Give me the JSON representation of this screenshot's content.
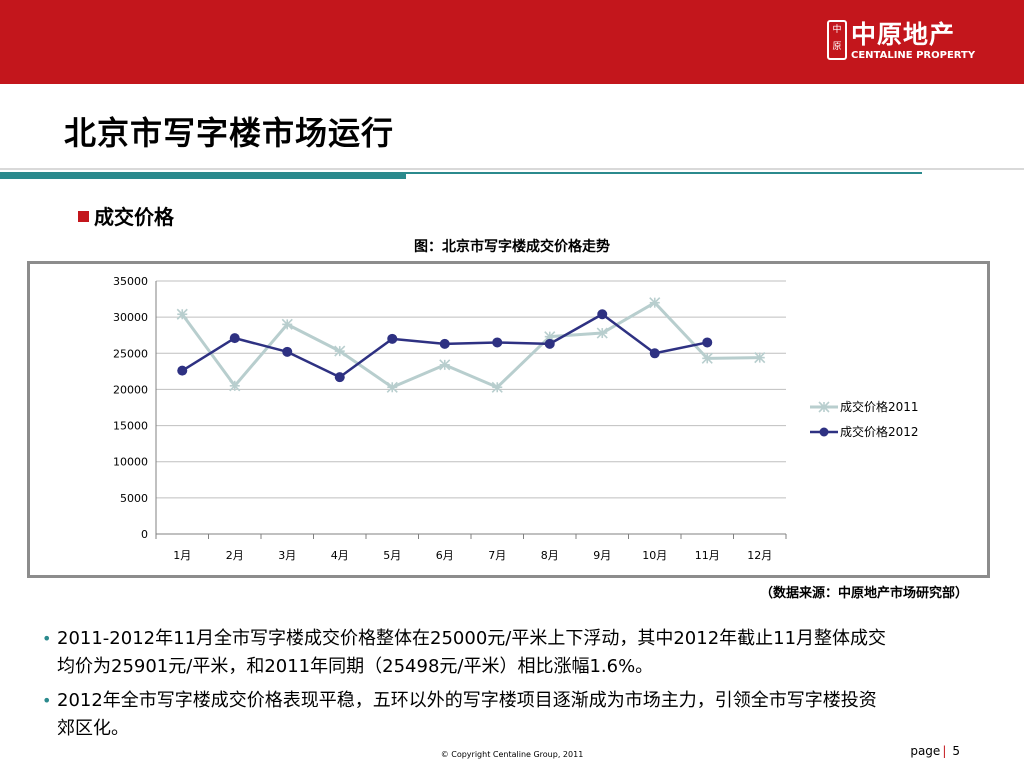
{
  "header": {
    "logo_mark": "中原",
    "logo_cn": "中原地产",
    "logo_en": "CENTALINE PROPERTY"
  },
  "page_title": "北京市写字楼市场运行",
  "section_heading": "成交价格",
  "colors": {
    "brand_red": "#c3161c",
    "teal": "#2b8a8d",
    "series_2011": "#b8cece",
    "series_2012": "#2e3182"
  },
  "chart_data": {
    "type": "line",
    "title": "图：北京市写字楼成交价格走势",
    "categories": [
      "1月",
      "2月",
      "3月",
      "4月",
      "5月",
      "6月",
      "7月",
      "8月",
      "9月",
      "10月",
      "11月",
      "12月"
    ],
    "ylim": [
      0,
      35000
    ],
    "yticks": [
      "0",
      "5000",
      "10000",
      "15000",
      "20000",
      "25000",
      "30000",
      "35000"
    ],
    "grid": true,
    "legend_position": "right",
    "series": [
      {
        "name": "成交价格2011",
        "marker": "star",
        "color": "#b8cece",
        "values": [
          30400,
          20500,
          29000,
          25300,
          20300,
          23400,
          20300,
          27300,
          27800,
          32000,
          24300,
          24400
        ]
      },
      {
        "name": "成交价格2012",
        "marker": "circle",
        "color": "#2e3182",
        "values": [
          22600,
          27100,
          25200,
          21700,
          27000,
          26300,
          26500,
          26300,
          30400,
          25000,
          26500,
          null
        ]
      }
    ]
  },
  "source_note": "（数据来源：中原地产市场研究部）",
  "bullets": [
    {
      "line1": "2011-2012年11月全市写字楼成交价格整体在25000元/平米上下浮动，其中2012年截止11月整体成交",
      "line2": "均价为25901元/平米，和2011年同期（25498元/平米）相比涨幅1.6%。"
    },
    {
      "line1": "2012年全市写字楼成交价格表现平稳，五环以外的写字楼项目逐渐成为市场主力，引领全市写字楼投资",
      "line2": "郊区化。"
    }
  ],
  "footer": {
    "copyright": "© Copyright  Centaline Group, 2011",
    "page_label": "page",
    "page_sep": "|",
    "page_number": "5"
  }
}
